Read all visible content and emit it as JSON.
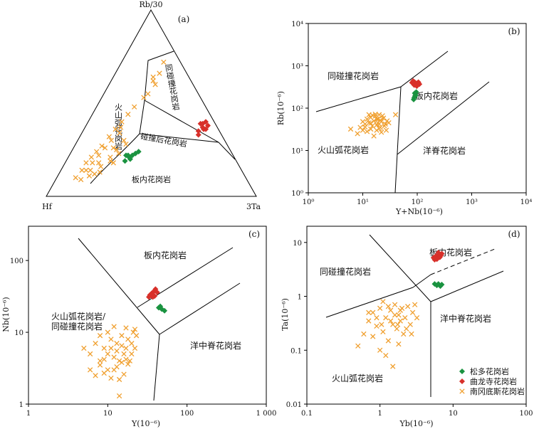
{
  "colors": {
    "songduo": "#1a9340",
    "qulongsi": "#d8302a",
    "nangangdisi": "#f0a030"
  },
  "chart_data": [
    {
      "id": "a",
      "type": "scatter",
      "subtype": "ternary",
      "panel_label": "(a)",
      "apex_labels": {
        "top": "Rb/30",
        "left": "Hf",
        "right": "3Ta"
      },
      "field_labels": [
        "同碰撞花岗岩",
        "碰撞后花岗岩",
        "火山弧花岗岩",
        "板内花岗岩"
      ],
      "series": [
        {
          "key": "songduo",
          "points": [
            [
              0.29,
              0.21
            ],
            [
              0.28,
              0.22
            ],
            [
              0.31,
              0.23
            ],
            [
              0.27,
              0.22
            ],
            [
              0.3,
              0.22
            ],
            [
              0.32,
              0.24
            ],
            [
              0.28,
              0.19
            ],
            [
              0.3,
              0.2
            ]
          ]
        },
        {
          "key": "qulongsi",
          "points": [
            [
              0.54,
              0.39
            ],
            [
              0.56,
              0.37
            ],
            [
              0.55,
              0.35
            ],
            [
              0.57,
              0.36
            ],
            [
              0.55,
              0.39
            ],
            [
              0.56,
              0.4
            ],
            [
              0.58,
              0.38
            ],
            [
              0.56,
              0.33
            ],
            [
              0.58,
              0.36
            ]
          ]
        },
        {
          "key": "nangangdisi",
          "points": [
            [
              0.2,
              0.72
            ],
            [
              0.21,
              0.66
            ],
            [
              0.2,
              0.62
            ],
            [
              0.19,
              0.64
            ],
            [
              0.21,
              0.55
            ],
            [
              0.22,
              0.6
            ],
            [
              0.2,
              0.53
            ],
            [
              0.18,
              0.48
            ],
            [
              0.17,
              0.44
            ],
            [
              0.16,
              0.4
            ],
            [
              0.15,
              0.36
            ],
            [
              0.17,
              0.37
            ],
            [
              0.18,
              0.34
            ],
            [
              0.14,
              0.32
            ],
            [
              0.16,
              0.3
            ],
            [
              0.13,
              0.27
            ],
            [
              0.15,
              0.26
            ],
            [
              0.12,
              0.24
            ],
            [
              0.14,
              0.22
            ],
            [
              0.11,
              0.21
            ],
            [
              0.1,
              0.18
            ],
            [
              0.13,
              0.18
            ],
            [
              0.12,
              0.14
            ],
            [
              0.1,
              0.14
            ],
            [
              0.09,
              0.1
            ],
            [
              0.12,
              0.09
            ],
            [
              0.15,
              0.11
            ],
            [
              0.17,
              0.12
            ],
            [
              0.18,
              0.16
            ],
            [
              0.2,
              0.21
            ],
            [
              0.21,
              0.25
            ],
            [
              0.19,
              0.26
            ],
            [
              0.22,
              0.3
            ],
            [
              0.23,
              0.23
            ],
            [
              0.24,
              0.28
            ],
            [
              0.16,
              0.18
            ],
            [
              0.14,
              0.14
            ],
            [
              0.19,
              0.13
            ],
            [
              0.21,
              0.19
            ],
            [
              0.23,
              0.18
            ]
          ]
        }
      ]
    },
    {
      "id": "b",
      "type": "scatter",
      "panel_label": "(b)",
      "xlabel": "Y+Nb(10⁻⁶)",
      "ylabel": "Rb(10⁻⁶)",
      "xscale": "log",
      "yscale": "log",
      "xlim": [
        1,
        10000
      ],
      "ylim": [
        1,
        10000
      ],
      "xticks": [
        {
          "v": 1,
          "label": "10⁰"
        },
        {
          "v": 10,
          "label": "10¹"
        },
        {
          "v": 100,
          "label": "10²"
        },
        {
          "v": 1000,
          "label": "10³"
        },
        {
          "v": 10000,
          "label": "10⁴"
        }
      ],
      "yticks": [
        {
          "v": 1,
          "label": "10⁰"
        },
        {
          "v": 10,
          "label": "10¹"
        },
        {
          "v": 100,
          "label": "10²"
        },
        {
          "v": 1000,
          "label": "10³"
        },
        {
          "v": 10000,
          "label": "10⁴"
        }
      ],
      "field_labels": [
        "同碰撞花岗岩",
        "板内花岗岩",
        "火山弧花岗岩",
        "洋脊花岗岩"
      ],
      "series": [
        {
          "key": "songduo",
          "points": [
            [
              86,
              160
            ],
            [
              88,
              175
            ],
            [
              91,
              190
            ],
            [
              94,
              205
            ],
            [
              90,
              225
            ],
            [
              96,
              240
            ],
            [
              92,
              200
            ]
          ]
        },
        {
          "key": "qulongsi",
          "points": [
            [
              80,
              400
            ],
            [
              85,
              420
            ],
            [
              90,
              410
            ],
            [
              95,
              380
            ],
            [
              100,
              390
            ],
            [
              105,
              410
            ],
            [
              88,
              350
            ],
            [
              98,
              330
            ],
            [
              110,
              370
            ],
            [
              84,
              440
            ]
          ]
        },
        {
          "key": "nangangdisi",
          "points": [
            [
              8,
              25
            ],
            [
              9,
              35
            ],
            [
              10,
              30
            ],
            [
              11,
              42
            ],
            [
              12,
              55
            ],
            [
              13,
              45
            ],
            [
              14,
              60
            ],
            [
              15,
              38
            ],
            [
              16,
              50
            ],
            [
              17,
              65
            ],
            [
              18,
              40
            ],
            [
              19,
              55
            ],
            [
              20,
              70
            ],
            [
              21,
              35
            ],
            [
              22,
              48
            ],
            [
              24,
              58
            ],
            [
              26,
              42
            ],
            [
              28,
              50
            ],
            [
              12,
              28
            ],
            [
              14,
              32
            ],
            [
              16,
              22
            ],
            [
              18,
              30
            ],
            [
              20,
              33
            ],
            [
              22,
              27
            ],
            [
              25,
              38
            ],
            [
              13,
              70
            ],
            [
              15,
              68
            ],
            [
              17,
              72
            ],
            [
              19,
              45
            ],
            [
              21,
              52
            ],
            [
              23,
              66
            ],
            [
              10,
              48
            ],
            [
              11,
              36
            ],
            [
              40,
              70
            ],
            [
              6,
              32
            ],
            [
              27,
              30
            ],
            [
              30,
              45
            ],
            [
              14,
              44
            ],
            [
              18,
              55
            ],
            [
              20,
              42
            ]
          ]
        }
      ]
    },
    {
      "id": "c",
      "type": "scatter",
      "panel_label": "(c)",
      "xlabel": "Y(10⁻⁶)",
      "ylabel": "Nb(10⁻⁶)",
      "xscale": "log",
      "yscale": "log",
      "xlim": [
        1,
        1000
      ],
      "ylim": [
        1,
        300
      ],
      "xticks": [
        {
          "v": 1,
          "label": "1"
        },
        {
          "v": 10,
          "label": "10"
        },
        {
          "v": 100,
          "label": "100"
        },
        {
          "v": 1000,
          "label": "1 000"
        }
      ],
      "yticks": [
        {
          "v": 1,
          "label": "1"
        },
        {
          "v": 10,
          "label": "10"
        },
        {
          "v": 100,
          "label": "100"
        }
      ],
      "field_labels": [
        "板内花岗岩",
        "火山弧花岗岩/",
        "同碰撞花岗岩",
        "洋中脊花岗岩"
      ],
      "series": [
        {
          "key": "songduo",
          "points": [
            [
              44,
              22
            ],
            [
              48,
              21
            ],
            [
              52,
              20
            ],
            [
              46,
              23
            ]
          ]
        },
        {
          "key": "qulongsi",
          "points": [
            [
              34,
              33
            ],
            [
              36,
              35
            ],
            [
              38,
              37
            ],
            [
              40,
              40
            ],
            [
              37,
              31
            ],
            [
              35,
              34
            ],
            [
              42,
              36
            ],
            [
              39,
              32
            ],
            [
              33,
              31
            ],
            [
              40,
              38
            ]
          ]
        },
        {
          "key": "nangangdisi",
          "points": [
            [
              5,
              6
            ],
            [
              6,
              5
            ],
            [
              7,
              7
            ],
            [
              8,
              4
            ],
            [
              9,
              6
            ],
            [
              10,
              5
            ],
            [
              11,
              8
            ],
            [
              12,
              3
            ],
            [
              13,
              7
            ],
            [
              14,
              4
            ],
            [
              15,
              9
            ],
            [
              16,
              5
            ],
            [
              17,
              6
            ],
            [
              18,
              8
            ],
            [
              19,
              4
            ],
            [
              20,
              7
            ],
            [
              21,
              10
            ],
            [
              22,
              6
            ],
            [
              6,
              3
            ],
            [
              7,
              2.5
            ],
            [
              8,
              3.5
            ],
            [
              9,
              2.7
            ],
            [
              10,
              3
            ],
            [
              11,
              2.3
            ],
            [
              12,
              4.5
            ],
            [
              13,
              3.3
            ],
            [
              14,
              1.3
            ],
            [
              15,
              3.8
            ],
            [
              16,
              2.6
            ],
            [
              17,
              4.2
            ],
            [
              18,
              3.6
            ],
            [
              20,
              5
            ],
            [
              22,
              11
            ],
            [
              23,
              9
            ],
            [
              12,
              12
            ],
            [
              10,
              10
            ],
            [
              8,
              9
            ],
            [
              11,
              6
            ],
            [
              13,
              5.5
            ],
            [
              15,
              6.5
            ],
            [
              14,
              2.2
            ],
            [
              9,
              4.2
            ],
            [
              17,
              11.5
            ]
          ]
        }
      ]
    },
    {
      "id": "d",
      "type": "scatter",
      "panel_label": "(d)",
      "xlabel": "Yb(10⁻⁶)",
      "ylabel": "Ta(10⁻⁶)",
      "xscale": "log",
      "yscale": "log",
      "xlim": [
        0.1,
        100
      ],
      "ylim": [
        0.01,
        20
      ],
      "xticks": [
        {
          "v": 0.1,
          "label": "0.1"
        },
        {
          "v": 1,
          "label": "1"
        },
        {
          "v": 10,
          "label": "10"
        },
        {
          "v": 100,
          "label": "100"
        }
      ],
      "yticks": [
        {
          "v": 0.01,
          "label": "0.01"
        },
        {
          "v": 0.1,
          "label": "0.1"
        },
        {
          "v": 1,
          "label": "1"
        },
        {
          "v": 10,
          "label": "10"
        }
      ],
      "field_labels": [
        "板内花岗岩",
        "同碰撞花岗岩",
        "洋中脊花岗岩",
        "火山弧花岗岩"
      ],
      "legend": {
        "placement": "bottom-right",
        "entries": [
          {
            "key": "songduo",
            "label": "松多花岗岩"
          },
          {
            "key": "qulongsi",
            "label": "曲龙寺花岗岩"
          },
          {
            "key": "nangangdisi",
            "label": "南冈底斯花岗岩"
          }
        ]
      },
      "series": [
        {
          "key": "songduo",
          "points": [
            [
              5.6,
              1.7
            ],
            [
              6.0,
              1.6
            ],
            [
              6.3,
              1.7
            ],
            [
              6.7,
              1.55
            ],
            [
              7.0,
              1.65
            ]
          ]
        },
        {
          "key": "qulongsi",
          "points": [
            [
              5.4,
              5.2
            ],
            [
              5.8,
              5.6
            ],
            [
              6.1,
              5.0
            ],
            [
              6.4,
              6.0
            ],
            [
              6.8,
              5.7
            ],
            [
              6.0,
              4.9
            ],
            [
              6.6,
              5.3
            ],
            [
              7.0,
              6.2
            ],
            [
              5.6,
              4.8
            ],
            [
              6.3,
              6.5
            ]
          ]
        },
        {
          "key": "nangangdisi",
          "points": [
            [
              0.5,
              0.12
            ],
            [
              0.6,
              0.2
            ],
            [
              0.7,
              0.35
            ],
            [
              0.8,
              0.5
            ],
            [
              0.9,
              0.28
            ],
            [
              1.0,
              0.6
            ],
            [
              1.1,
              0.22
            ],
            [
              1.2,
              0.4
            ],
            [
              1.3,
              0.15
            ],
            [
              1.4,
              0.55
            ],
            [
              1.5,
              0.3
            ],
            [
              1.6,
              0.7
            ],
            [
              1.7,
              0.25
            ],
            [
              1.8,
              0.45
            ],
            [
              1.9,
              0.35
            ],
            [
              2.0,
              0.6
            ],
            [
              2.2,
              0.4
            ],
            [
              2.4,
              0.65
            ],
            [
              2.6,
              0.3
            ],
            [
              2.8,
              0.5
            ],
            [
              3.0,
              0.7
            ],
            [
              3.2,
              0.4
            ],
            [
              0.8,
              0.18
            ],
            [
              1.0,
              0.1
            ],
            [
              1.2,
              0.08
            ],
            [
              1.5,
              0.05
            ],
            [
              1.8,
              0.13
            ],
            [
              2.1,
              0.2
            ],
            [
              0.7,
              0.5
            ],
            [
              1.1,
              0.8
            ],
            [
              1.3,
              0.65
            ],
            [
              1.6,
              0.45
            ],
            [
              1.9,
              0.55
            ],
            [
              2.3,
              0.25
            ],
            [
              2.7,
              0.2
            ],
            [
              0.9,
              0.4
            ],
            [
              1.05,
              0.3
            ],
            [
              1.4,
              0.35
            ],
            [
              1.75,
              0.3
            ]
          ]
        }
      ]
    }
  ]
}
